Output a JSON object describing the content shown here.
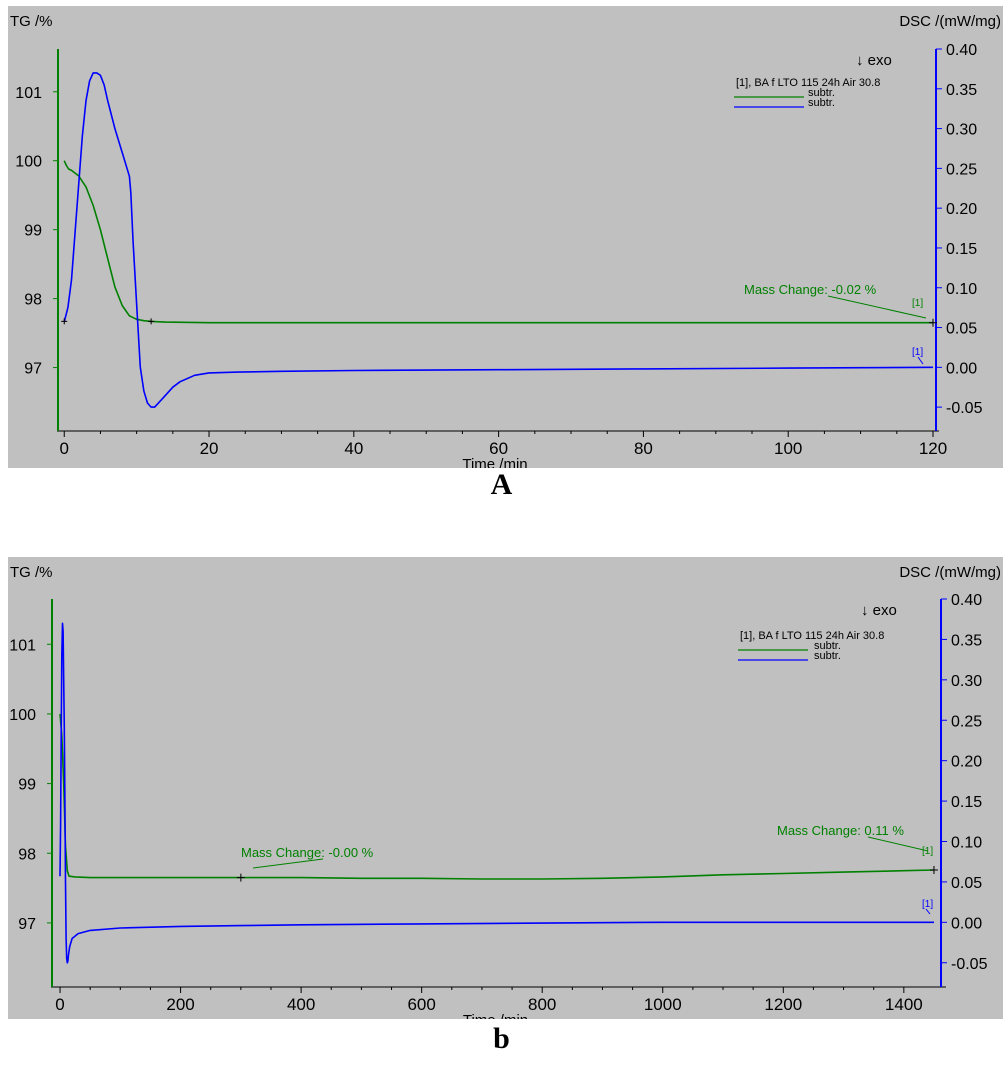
{
  "chart_data": [
    {
      "panel_label": "A",
      "type": "line",
      "left_axis_title": "TG /%",
      "right_axis_title": "DSC /(mW/mg)",
      "x_axis_title": "Time /min",
      "exo_marker": "↓ exo",
      "legend_title": "[1], BA f LTO 115 24h Air 30.8",
      "xlim": [
        -1,
        120
      ],
      "x_ticks": [
        0,
        20,
        40,
        60,
        80,
        100,
        120
      ],
      "y_left_lim": [
        96.08,
        101.62
      ],
      "y_left_ticks": [
        97,
        98,
        99,
        100,
        101
      ],
      "y_right_lim": [
        -0.08,
        0.4
      ],
      "y_right_ticks": [
        -0.05,
        0.0,
        0.05,
        0.1,
        0.15,
        0.2,
        0.25,
        0.3,
        0.35,
        0.4
      ],
      "series": [
        {
          "name": "subtr.",
          "axis": "left",
          "color": "#008000",
          "x": [
            0,
            0.3,
            0.6,
            1,
            2,
            3,
            4,
            5,
            6,
            7,
            8,
            9,
            10,
            11,
            12,
            14,
            20,
            40,
            60,
            80,
            100,
            120
          ],
          "y": [
            100.0,
            99.93,
            99.88,
            99.86,
            99.78,
            99.62,
            99.35,
            99.0,
            98.58,
            98.17,
            97.9,
            97.75,
            97.7,
            97.68,
            97.67,
            97.66,
            97.65,
            97.65,
            97.65,
            97.65,
            97.65,
            97.65
          ]
        },
        {
          "name": "subtr.",
          "axis": "right",
          "color": "#0000ff",
          "x": [
            0,
            0.5,
            1,
            1.5,
            2,
            2.5,
            3,
            3.5,
            4,
            4.5,
            5,
            5.5,
            6,
            7,
            8,
            9,
            9.2,
            9.5,
            10,
            10.5,
            11,
            11.5,
            12,
            12.5,
            13,
            14,
            15,
            16,
            18,
            20,
            24,
            30,
            40,
            60,
            80,
            100,
            120
          ],
          "y": [
            0.057,
            0.075,
            0.11,
            0.17,
            0.23,
            0.29,
            0.335,
            0.36,
            0.37,
            0.37,
            0.367,
            0.355,
            0.335,
            0.3,
            0.27,
            0.24,
            0.22,
            0.16,
            0.08,
            0.0,
            -0.03,
            -0.045,
            -0.05,
            -0.05,
            -0.045,
            -0.035,
            -0.025,
            -0.018,
            -0.01,
            -0.007,
            -0.006,
            -0.005,
            -0.004,
            -0.003,
            -0.002,
            -0.001,
            0.0
          ]
        }
      ],
      "annotations": [
        {
          "text": "Mass Change: -0.02 %",
          "color": "#008000"
        },
        {
          "text": "[1]",
          "color": "#008000"
        },
        {
          "text": "[1]",
          "color": "#0000ff"
        }
      ]
    },
    {
      "panel_label": "b",
      "type": "line",
      "left_axis_title": "TG /%",
      "right_axis_title": "DSC /(mW/mg)",
      "x_axis_title": "Time /min",
      "exo_marker": "↓ exo",
      "legend_title": "[1], BA f LTO 115 24h Air 30.8",
      "xlim": [
        -15,
        1460
      ],
      "x_ticks": [
        0,
        200,
        400,
        600,
        800,
        1000,
        1200,
        1400
      ],
      "y_left_lim": [
        96.08,
        101.65
      ],
      "y_left_ticks": [
        97,
        98,
        99,
        100,
        101
      ],
      "y_right_lim": [
        -0.08,
        0.4
      ],
      "y_right_ticks": [
        -0.05,
        0.0,
        0.05,
        0.1,
        0.15,
        0.2,
        0.25,
        0.3,
        0.35,
        0.4
      ],
      "series": [
        {
          "name": "subtr.",
          "axis": "left",
          "color": "#008000",
          "x": [
            0,
            3,
            6,
            9,
            12,
            15,
            25,
            50,
            100,
            200,
            300,
            400,
            500,
            600,
            700,
            800,
            900,
            1000,
            1100,
            1200,
            1300,
            1400,
            1450
          ],
          "y": [
            100.0,
            99.7,
            99.0,
            98.1,
            97.75,
            97.67,
            97.66,
            97.65,
            97.65,
            97.65,
            97.65,
            97.65,
            97.64,
            97.64,
            97.63,
            97.63,
            97.64,
            97.66,
            97.69,
            97.71,
            97.73,
            97.75,
            97.76
          ]
        },
        {
          "name": "subtr.",
          "axis": "right",
          "color": "#0000ff",
          "x": [
            0,
            1,
            2,
            3,
            4,
            5,
            6,
            7,
            8,
            9,
            10,
            11,
            12,
            13,
            14,
            16,
            20,
            30,
            50,
            100,
            200,
            300,
            400,
            600,
            800,
            1000,
            1200,
            1450
          ],
          "y": [
            0.057,
            0.12,
            0.23,
            0.33,
            0.37,
            0.36,
            0.3,
            0.24,
            0.15,
            0.05,
            -0.02,
            -0.045,
            -0.05,
            -0.048,
            -0.04,
            -0.03,
            -0.02,
            -0.014,
            -0.01,
            -0.007,
            -0.005,
            -0.004,
            -0.003,
            -0.002,
            -0.001,
            0.0,
            0.0,
            0.0
          ]
        }
      ],
      "annotations": [
        {
          "text": "Mass Change: -0.00 %",
          "color": "#008000"
        },
        {
          "text": "Mass Change: 0.11 %",
          "color": "#008000"
        },
        {
          "text": "[1]",
          "color": "#008000"
        },
        {
          "text": "[1]",
          "color": "#0000ff"
        }
      ]
    }
  ]
}
